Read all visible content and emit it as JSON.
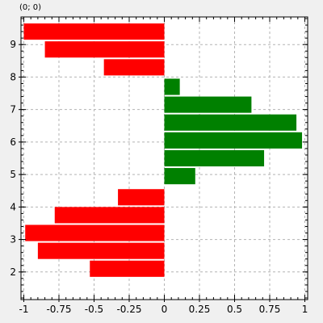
{
  "coordinate_readout": "(0; 0)",
  "colors": {
    "negative_bar": "#ff0000",
    "positive_bar": "#008000",
    "plot_background": "#ffffff",
    "grid": "#b4b4b4",
    "axis": "#000000"
  },
  "chart_data": {
    "type": "bar",
    "orientation": "horizontal",
    "title": "",
    "xlabel": "",
    "ylabel": "",
    "xlim": [
      -1.02,
      1.02
    ],
    "ylim": [
      1.15,
      9.85
    ],
    "grid": true,
    "x_ticks": [
      -1,
      -0.75,
      -0.5,
      -0.25,
      0,
      0.25,
      0.5,
      0.75,
      1
    ],
    "x_tick_labels": [
      "-1",
      "-0.75",
      "-0.5",
      "-0.25",
      "0",
      "0.25",
      "0.5",
      "0.75",
      "1"
    ],
    "y_ticks": [
      2,
      3,
      4,
      5,
      6,
      7,
      8,
      9
    ],
    "y_tick_labels": [
      "2",
      "3",
      "4",
      "5",
      "6",
      "7",
      "8",
      "9"
    ],
    "bar_height": 0.5,
    "bars": [
      {
        "y": 2.1,
        "value": -0.53
      },
      {
        "y": 2.65,
        "value": -0.9
      },
      {
        "y": 3.2,
        "value": -0.99
      },
      {
        "y": 3.75,
        "value": -0.78
      },
      {
        "y": 4.3,
        "value": -0.33
      },
      {
        "y": 4.95,
        "value": 0.22
      },
      {
        "y": 5.5,
        "value": 0.71
      },
      {
        "y": 6.05,
        "value": 0.98
      },
      {
        "y": 6.6,
        "value": 0.94
      },
      {
        "y": 7.15,
        "value": 0.62
      },
      {
        "y": 7.7,
        "value": 0.11
      },
      {
        "y": 8.3,
        "value": -0.43
      },
      {
        "y": 8.85,
        "value": -0.85
      },
      {
        "y": 9.4,
        "value": -1.0
      }
    ]
  }
}
